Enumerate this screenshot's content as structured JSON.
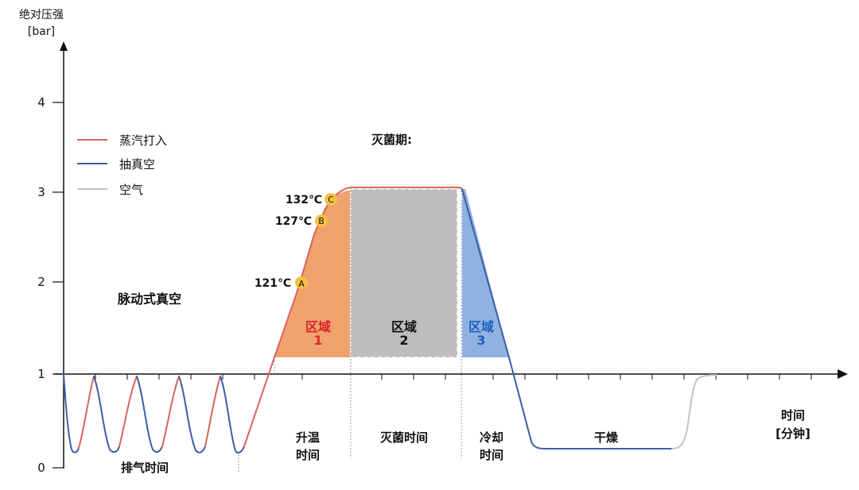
{
  "axes": {
    "y_title_line1": "绝对压强",
    "y_title_line2": "[bar]",
    "y_ticks": [
      "0",
      "1",
      "2",
      "3",
      "4"
    ],
    "x_title_line1": "时间",
    "x_title_line2": "[分钟]"
  },
  "legend": [
    {
      "label": "蒸汽打入",
      "color": "#d9645a"
    },
    {
      "label": "抽真空",
      "color": "#3a5ea6"
    },
    {
      "label": "空气",
      "color": "#bfc5c9"
    }
  ],
  "titles": {
    "sterilization_phase": "灭菌期:",
    "pulse_vacuum": "脉动式真空"
  },
  "temperatures": [
    {
      "label": "121℃",
      "marker": "A"
    },
    {
      "label": "127℃",
      "marker": "B"
    },
    {
      "label": "132℃",
      "marker": "C"
    }
  ],
  "zones": [
    {
      "label": "区域",
      "number": "1",
      "fill": "#f0a26e",
      "text_color": "#d9262a"
    },
    {
      "label": "区域",
      "number": "2",
      "fill": "#bdbdbd",
      "text_color": "#111111"
    },
    {
      "label": "区域",
      "number": "3",
      "fill": "#8fb2e2",
      "text_color": "#1f5fbf"
    }
  ],
  "phases": {
    "exhaust": "排气时间",
    "heating_line1": "升温",
    "heating_line2": "时间",
    "sterilize": "灭菌时间",
    "cooling_line1": "冷却",
    "cooling_line2": "时间",
    "drying": "干燥"
  },
  "colors": {
    "marker_fill": "#f5c242",
    "axis": "#111111",
    "divider": "#999999"
  }
}
